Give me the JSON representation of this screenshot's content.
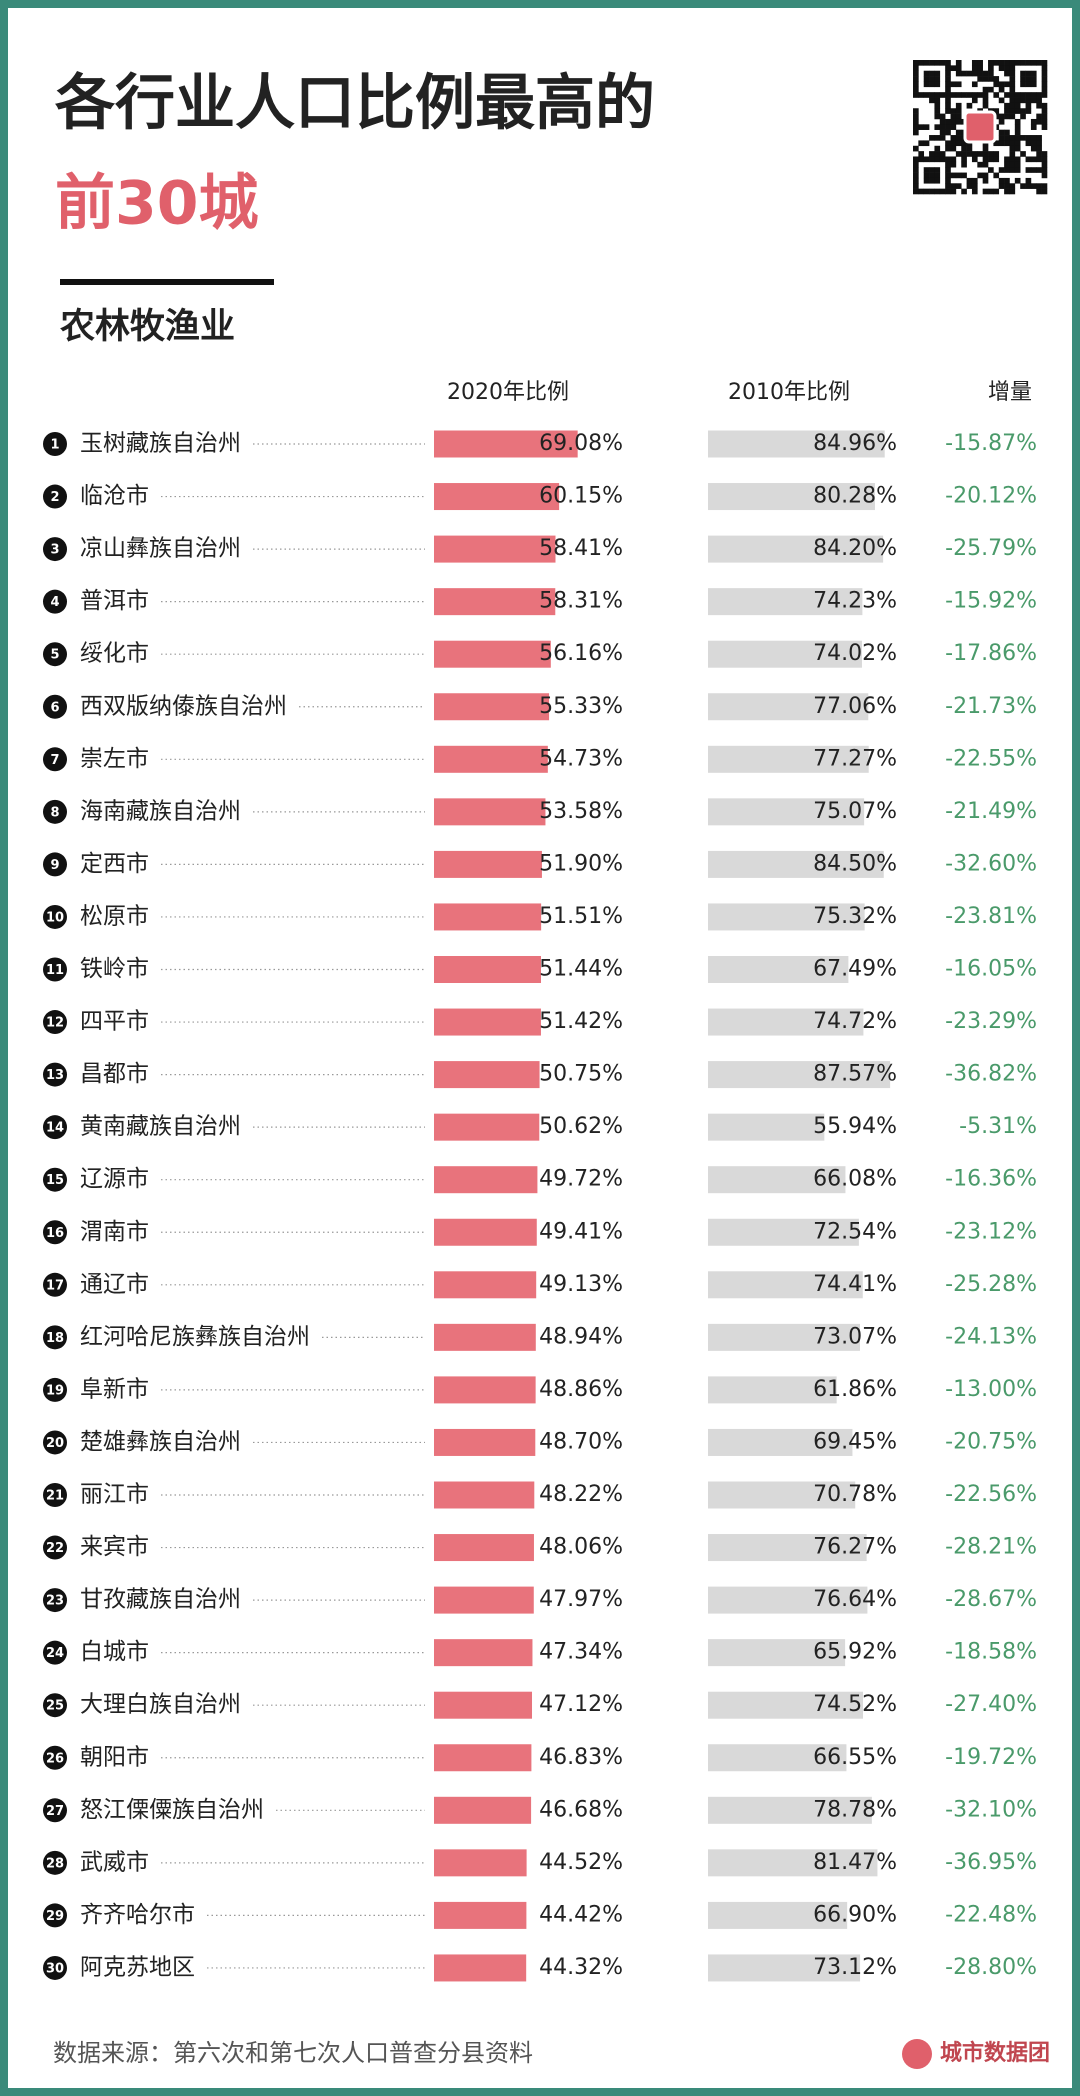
{
  "chart_data": {
    "type": "bar",
    "title": "各行业人口比例最高的",
    "title_highlight": "前30城",
    "subtitle": "农林牧渔业",
    "source": "数据来源：第六次和第七次人口普查分县资料",
    "brand": "城市数据团",
    "xlim": [
      0,
      100
    ],
    "ranks": [
      1,
      2,
      3,
      4,
      5,
      6,
      7,
      8,
      9,
      10,
      11,
      12,
      13,
      14,
      15,
      16,
      17,
      18,
      19,
      20,
      21,
      22,
      23,
      24,
      25,
      26,
      27,
      28,
      29,
      30
    ],
    "categories": [
      "玉树藏族自治州",
      "临沧市",
      "凉山彝族自治州",
      "普洱市",
      "绥化市",
      "西双版纳傣族自治州",
      "崇左市",
      "海南藏族自治州",
      "定西市",
      "松原市",
      "铁岭市",
      "四平市",
      "昌都市",
      "黄南藏族自治州",
      "辽源市",
      "渭南市",
      "通辽市",
      "红河哈尼族彝族自治州",
      "阜新市",
      "楚雄彝族自治州",
      "丽江市",
      "来宾市",
      "甘孜藏族自治州",
      "白城市",
      "大理白族自治州",
      "朝阳市",
      "怒江傈僳族自治州",
      "武威市",
      "齐齐哈尔市",
      "阿克苏地区"
    ],
    "series": [
      {
        "name": "2020年比例",
        "color": "#e8737c",
        "values": [
          69.08,
          60.15,
          58.41,
          58.31,
          56.16,
          55.33,
          54.73,
          53.58,
          51.9,
          51.51,
          51.44,
          51.42,
          50.75,
          50.62,
          49.72,
          49.41,
          49.13,
          48.94,
          48.86,
          48.7,
          48.22,
          48.06,
          47.97,
          47.34,
          47.12,
          46.83,
          46.68,
          44.52,
          44.42,
          44.32
        ],
        "value_labels": [
          "69.08%",
          "60.15%",
          "58.41%",
          "58.31%",
          "56.16%",
          "55.33%",
          "54.73%",
          "53.58%",
          "51.90%",
          "51.51%",
          "51.44%",
          "51.42%",
          "50.75%",
          "50.62%",
          "49.72%",
          "49.41%",
          "49.13%",
          "48.94%",
          "48.86%",
          "48.70%",
          "48.22%",
          "48.06%",
          "47.97%",
          "47.34%",
          "47.12%",
          "46.83%",
          "46.68%",
          "44.52%",
          "44.42%",
          "44.32%"
        ]
      },
      {
        "name": "2010年比例",
        "color": "#d9d9d9",
        "values": [
          84.96,
          80.28,
          84.2,
          74.23,
          74.02,
          77.06,
          77.27,
          75.07,
          84.5,
          75.32,
          67.49,
          74.72,
          87.57,
          55.94,
          66.08,
          72.54,
          74.41,
          73.07,
          61.86,
          69.45,
          70.78,
          76.27,
          76.64,
          65.92,
          74.52,
          66.55,
          78.78,
          81.47,
          66.9,
          73.12
        ],
        "value_labels": [
          "84.96%",
          "80.28%",
          "84.20%",
          "74.23%",
          "74.02%",
          "77.06%",
          "77.27%",
          "75.07%",
          "84.50%",
          "75.32%",
          "67.49%",
          "74.72%",
          "87.57%",
          "55.94%",
          "66.08%",
          "72.54%",
          "74.41%",
          "73.07%",
          "61.86%",
          "69.45%",
          "70.78%",
          "76.27%",
          "76.64%",
          "65.92%",
          "74.52%",
          "66.55%",
          "78.78%",
          "81.47%",
          "66.90%",
          "73.12%"
        ]
      },
      {
        "name": "增量",
        "color": "#4a9a6a",
        "values": [
          -15.87,
          -20.12,
          -25.79,
          -15.92,
          -17.86,
          -21.73,
          -22.55,
          -21.49,
          -32.6,
          -23.81,
          -16.05,
          -23.29,
          -36.82,
          -5.31,
          -16.36,
          -23.12,
          -25.28,
          -24.13,
          -13.0,
          -20.75,
          -22.56,
          -28.21,
          -28.67,
          -18.58,
          -27.4,
          -19.72,
          -32.1,
          -36.95,
          -22.48,
          -28.8
        ],
        "value_labels": [
          "-15.87%",
          "-20.12%",
          "-25.79%",
          "-15.92%",
          "-17.86%",
          "-21.73%",
          "-22.55%",
          "-21.49%",
          "-32.60%",
          "-23.81%",
          "-16.05%",
          "-23.29%",
          "-36.82%",
          "-5.31%",
          "-16.36%",
          "-23.12%",
          "-25.28%",
          "-24.13%",
          "-13.00%",
          "-20.75%",
          "-22.56%",
          "-28.21%",
          "-28.67%",
          "-18.58%",
          "-27.40%",
          "-19.72%",
          "-32.10%",
          "-36.95%",
          "-22.48%",
          "-28.80%"
        ]
      }
    ]
  }
}
